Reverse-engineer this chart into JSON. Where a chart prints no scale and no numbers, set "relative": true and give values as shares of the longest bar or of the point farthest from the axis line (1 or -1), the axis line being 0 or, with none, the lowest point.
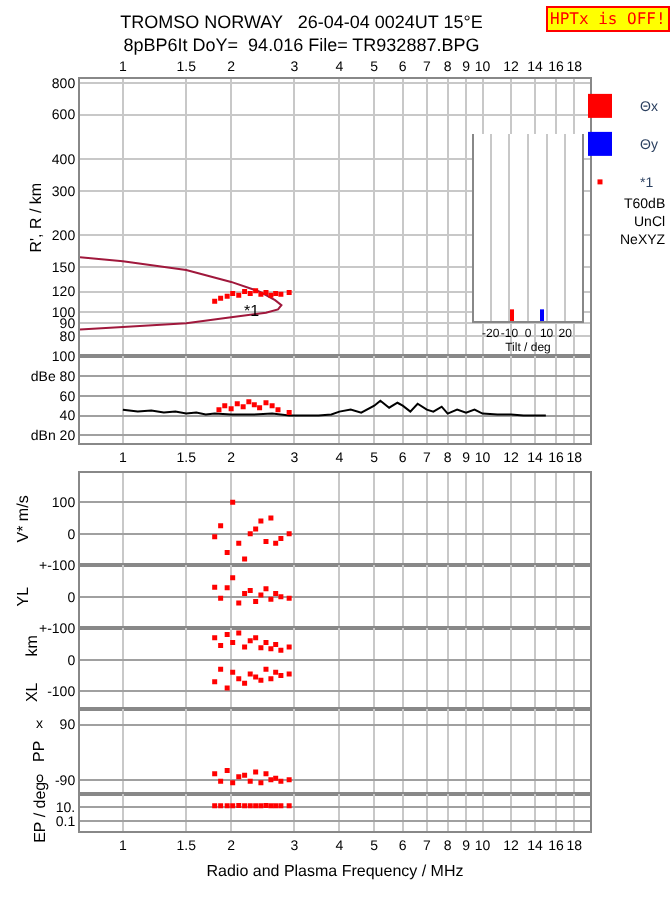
{
  "chart_data": [
    {
      "type": "scatter",
      "title": "TROMSO NORWAY   26-04-04 0024UT 15°E",
      "subtitle": "8pBP6It DoY=  94.016 File= TR932887.BPG",
      "ylabel": "R', R / km",
      "log": "xy",
      "xlim": [
        0.76,
        19.9
      ],
      "xticks": [
        1,
        1.5,
        2,
        3,
        4,
        5,
        6,
        7,
        8,
        9,
        10,
        12,
        14,
        16,
        18
      ],
      "ylim": [
        66.5,
        830
      ],
      "yticks": [
        80,
        90,
        100,
        120,
        150,
        200,
        300,
        400,
        600,
        800
      ],
      "grid": true,
      "legend": "top right",
      "x": [
        1.8,
        1.87,
        1.95,
        2.02,
        2.1,
        2.18,
        2.26,
        2.34,
        2.42,
        2.5,
        2.58,
        2.66,
        2.75,
        2.9
      ],
      "series": [
        {
          "type": "line",
          "color": "#a0183c",
          "x": [
            0.76,
            1,
            1.5,
            2,
            2.4,
            2.65,
            2.76,
            2.7,
            2.5,
            2,
            1.5,
            1,
            0.76
          ],
          "values": [
            164,
            158,
            146,
            131,
            120,
            111,
            106,
            102,
            99,
            95,
            90,
            87,
            85
          ]
        },
        {
          "name": "*1",
          "type": "scatter",
          "marker": "square",
          "color": "#ff0000",
          "values": [
            110,
            113,
            115,
            118,
            116,
            120,
            118,
            121,
            117,
            119,
            116,
            118,
            117,
            119
          ]
        }
      ],
      "annotations": [
        {
          "text": "*1",
          "x": 2.3,
          "y": 101
        },
        "HPTx is OFF!",
        "T60dB",
        "UnCl",
        "NeXYZ"
      ]
    },
    {
      "type": "line",
      "log": "x",
      "xlim": [
        0.76,
        19.9
      ],
      "xticks": [
        1,
        1.5,
        2,
        3,
        4,
        5,
        6,
        7,
        8,
        9,
        10,
        12,
        14,
        16,
        18
      ],
      "ylim": [
        12,
        100
      ],
      "yticks": [
        100,
        {
          "value": 80,
          "label": "dBe 80"
        },
        60,
        40,
        {
          "value": 20,
          "label": "dBn 20"
        }
      ],
      "grid": true,
      "series": [
        {
          "type": "line",
          "color": "#000000",
          "x": [
            1,
            1.1,
            1.2,
            1.3,
            1.4,
            1.5,
            1.6,
            1.7,
            1.8,
            2.0,
            2.3,
            2.6,
            2.9,
            3.2,
            3.5,
            3.8,
            4.0,
            4.3,
            4.6,
            5.0,
            5.2,
            5.5,
            5.8,
            6.0,
            6.3,
            6.6,
            7.0,
            7.3,
            7.7,
            8.0,
            8.5,
            9.0,
            9.5,
            10,
            11,
            12,
            13,
            14,
            15
          ],
          "values": [
            46,
            44,
            45,
            43,
            44,
            42,
            43,
            41,
            42,
            41,
            41,
            42,
            40,
            40,
            40,
            41,
            44,
            46,
            43,
            50,
            55,
            48,
            53,
            50,
            44,
            52,
            46,
            44,
            49,
            42,
            46,
            43,
            46,
            42,
            41,
            41,
            40,
            40,
            40
          ]
        },
        {
          "type": "scatter",
          "marker": "square",
          "color": "#ff0000",
          "x": [
            1.85,
            1.92,
            2.0,
            2.08,
            2.16,
            2.24,
            2.32,
            2.4,
            2.5,
            2.6,
            2.7,
            2.9
          ],
          "values": [
            46,
            50,
            47,
            52,
            49,
            54,
            51,
            48,
            53,
            50,
            46,
            43
          ]
        }
      ]
    },
    {
      "type": "scatter",
      "ylabel": "V* m/s",
      "log": "x",
      "tick_labels": "y",
      "xlim": [
        0.76,
        19.9
      ],
      "xticks": [
        1,
        1.5,
        2,
        3,
        4,
        5,
        6,
        7,
        8,
        9,
        10,
        12,
        14,
        16,
        18
      ],
      "ylim": [
        -100,
        194
      ],
      "yticks": [
        100,
        0,
        {
          "value": -100,
          "label": "+-100"
        }
      ],
      "grid": true,
      "marker": "square",
      "x": [
        1.8,
        1.87,
        1.95,
        2.02,
        2.1,
        2.18,
        2.26,
        2.34,
        2.42,
        2.5,
        2.58,
        2.66,
        2.75,
        2.9
      ],
      "series": [
        {
          "color": "#ff0000",
          "values": [
            -10,
            25,
            -60,
            100,
            -30,
            -80,
            0,
            15,
            40,
            -25,
            50,
            -30,
            -15,
            0
          ]
        }
      ]
    },
    {
      "type": "scatter",
      "ylabel": "YL",
      "log": "x",
      "tick_labels": "y",
      "xlim": [
        0.76,
        19.9
      ],
      "xticks": [
        1,
        1.5,
        2,
        3,
        4,
        5,
        6,
        7,
        8,
        9,
        10,
        12,
        14,
        16,
        18
      ],
      "ylim": [
        -100,
        100
      ],
      "yticks": [
        0,
        {
          "value": -100,
          "label": "+-100"
        }
      ],
      "grid": true,
      "marker": "square",
      "x": [
        1.8,
        1.87,
        1.95,
        2.02,
        2.1,
        2.18,
        2.26,
        2.34,
        2.42,
        2.5,
        2.58,
        2.66,
        2.75,
        2.9
      ],
      "series": [
        {
          "color": "#ff0000",
          "values": [
            30,
            -5,
            28,
            60,
            -20,
            10,
            20,
            -15,
            5,
            25,
            -8,
            10,
            0,
            -5
          ]
        }
      ]
    },
    {
      "type": "scatter",
      "ylabel": "XL      km",
      "log": "x",
      "tick_labels": "y",
      "xlim": [
        0.76,
        19.9
      ],
      "xticks": [
        1,
        1.5,
        2,
        3,
        4,
        5,
        6,
        7,
        8,
        9,
        10,
        12,
        14,
        16,
        18
      ],
      "ylim": [
        -156,
        100
      ],
      "yticks": [
        0,
        -100
      ],
      "grid": true,
      "marker": "square",
      "x": [
        1.8,
        1.87,
        1.95,
        2.02,
        2.1,
        2.18,
        2.26,
        2.34,
        2.42,
        2.5,
        2.58,
        2.66,
        2.75,
        2.9
      ],
      "series": [
        {
          "color": "#ff0000",
          "values": [
            70,
            45,
            80,
            55,
            85,
            40,
            60,
            70,
            38,
            55,
            35,
            48,
            30,
            40
          ]
        },
        {
          "color": "#ff0000",
          "values": [
            -70,
            -30,
            -90,
            -40,
            -60,
            -75,
            -45,
            -55,
            -65,
            -30,
            -60,
            -40,
            -50,
            -45
          ]
        }
      ]
    },
    {
      "type": "scatter",
      "ylabel": "PP",
      "log": "x",
      "tick_labels": "y",
      "xlim": [
        0.76,
        19.9
      ],
      "xticks": [
        1,
        1.5,
        2,
        3,
        4,
        5,
        6,
        7,
        8,
        9,
        10,
        12,
        14,
        16,
        18
      ],
      "ylim": [
        -135,
        141
      ],
      "yticks": [
        90,
        -90
      ],
      "grid": true,
      "marker": "square",
      "x": [
        1.8,
        1.87,
        1.95,
        2.02,
        2.1,
        2.18,
        2.26,
        2.34,
        2.42,
        2.5,
        2.58,
        2.66,
        2.75,
        2.9
      ],
      "series": [
        {
          "color": "#ff0000",
          "values": [
            -70,
            -95,
            -60,
            -100,
            -80,
            -75,
            -95,
            -65,
            -100,
            -70,
            -90,
            -85,
            -95,
            -90
          ]
        }
      ],
      "annotations": [
        "x",
        "o"
      ]
    },
    {
      "type": "scatter",
      "ylabel": "EP / deg",
      "xlabel": "Radio and Plasma Frequency / MHz",
      "log": "xy",
      "xlim": [
        0.76,
        19.9
      ],
      "xticks": [
        1,
        1.5,
        2,
        3,
        4,
        5,
        6,
        7,
        8,
        9,
        10,
        12,
        14,
        16,
        18
      ],
      "ylim": [
        0.004,
        1000
      ],
      "yticks": [
        {
          "value": 10,
          "label": "10."
        },
        0.1
      ],
      "grid": true,
      "marker": "square",
      "x": [
        1.8,
        1.87,
        1.95,
        2.02,
        2.1,
        2.18,
        2.26,
        2.34,
        2.42,
        2.5,
        2.58,
        2.66,
        2.75,
        2.9
      ],
      "series": [
        {
          "color": "#ff0000",
          "values": [
            18,
            18,
            17,
            18,
            19,
            18,
            17,
            18,
            18,
            19,
            17,
            18,
            18,
            18
          ]
        }
      ]
    },
    {
      "type": "bar",
      "relative": true,
      "legend": "top right",
      "xlabel": "Tilt / deg",
      "tick_labels": "x",
      "xlim": [
        -29,
        29
      ],
      "xticks": [
        -20,
        -10,
        0,
        10,
        20
      ],
      "grid": "x",
      "series": [
        {
          "name": "Θx",
          "color": "#ff0000",
          "x": [
            -9
          ],
          "values": [
            1
          ]
        },
        {
          "name": "Θy",
          "color": "#0000ff",
          "x": [
            8
          ],
          "values": [
            1
          ]
        }
      ]
    }
  ]
}
